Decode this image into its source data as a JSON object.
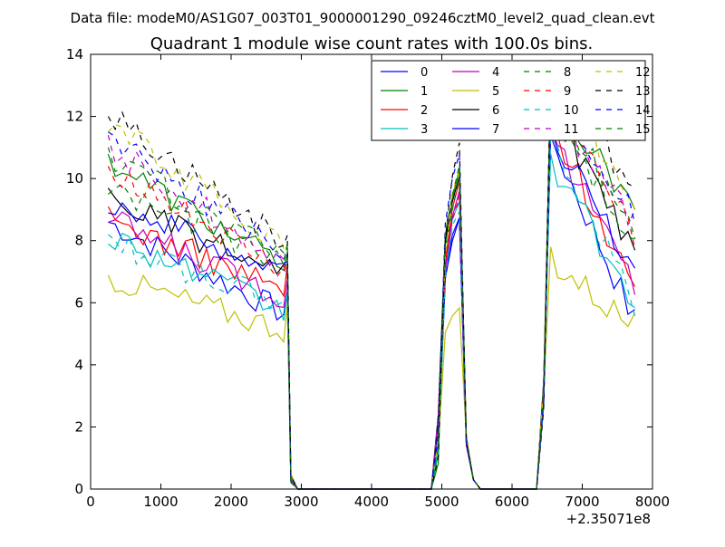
{
  "chart_data": {
    "type": "line",
    "suptitle": "Data file: modeM0/AS1G07_003T01_9000001290_09246cztM0_level2_quad_clean.evt",
    "title": "Quadrant 1 module wise count rates with 100.0s bins.",
    "xlabel": "",
    "ylabel": "",
    "xlim": [
      0,
      8000
    ],
    "ylim": [
      0,
      14
    ],
    "x_offset_label": "+2.35071e8",
    "xticks": [
      0,
      1000,
      2000,
      3000,
      4000,
      5000,
      6000,
      7000,
      8000
    ],
    "yticks": [
      0,
      2,
      4,
      6,
      8,
      10,
      12,
      14
    ],
    "grid": false,
    "legend_position": "top-right",
    "legend_columns": 4,
    "x": [
      250,
      350,
      450,
      550,
      650,
      750,
      850,
      950,
      1050,
      1150,
      1250,
      1350,
      1450,
      1550,
      1650,
      1750,
      1850,
      1950,
      2050,
      2150,
      2250,
      2350,
      2450,
      2550,
      2650,
      2750,
      2800,
      2850,
      2950,
      3050,
      4850,
      4950,
      5050,
      5150,
      5250,
      5350,
      5450,
      5550,
      6350,
      6450,
      6550,
      6650,
      6750,
      6850,
      6950,
      7050,
      7150,
      7250,
      7350,
      7450,
      7550,
      7650,
      7750
    ],
    "series": [
      {
        "name": "0",
        "color": "#0000ff",
        "dash": "solid",
        "start": 8.6,
        "end": 5.4,
        "peak1": 8.8,
        "peak2": 11.4,
        "dip": 4.5
      },
      {
        "name": "1",
        "color": "#008000",
        "dash": "solid",
        "start": 10.6,
        "end": 8.8,
        "peak1": 10.4,
        "peak2": 13.2,
        "dip": 5.8
      },
      {
        "name": "2",
        "color": "#ff0000",
        "dash": "solid",
        "start": 8.7,
        "end": 6.5,
        "peak1": 9.8,
        "peak2": 12.0,
        "dip": 5.5
      },
      {
        "name": "3",
        "color": "#00bfbf",
        "dash": "solid",
        "start": 8.2,
        "end": 6.0,
        "peak1": 9.2,
        "peak2": 10.8,
        "dip": 4.7
      },
      {
        "name": "4",
        "color": "#bf00bf",
        "dash": "solid",
        "start": 8.7,
        "end": 6.6,
        "peak1": 9.6,
        "peak2": 11.6,
        "dip": 5.2
      },
      {
        "name": "5",
        "color": "#bfbf00",
        "dash": "solid",
        "start": 6.8,
        "end": 5.2,
        "peak1": 5.9,
        "peak2": 7.8,
        "dip": 4.5
      },
      {
        "name": "6",
        "color": "#000000",
        "dash": "solid",
        "start": 9.4,
        "end": 7.4,
        "peak1": 10.2,
        "peak2": 12.6,
        "dip": 5.8
      },
      {
        "name": "7",
        "color": "#0000ff",
        "dash": "solid",
        "start": 9.3,
        "end": 7.0,
        "peak1": 8.6,
        "peak2": 11.8,
        "dip": 6.0
      },
      {
        "name": "8",
        "color": "#008000",
        "dash": "dashed",
        "start": 9.7,
        "end": 8.1,
        "peak1": 10.0,
        "peak2": 12.2,
        "dip": 6.4
      },
      {
        "name": "9",
        "color": "#ff0000",
        "dash": "dashed",
        "start": 10.4,
        "end": 8.0,
        "peak1": 9.4,
        "peak2": 13.0,
        "dip": 5.6
      },
      {
        "name": "10",
        "color": "#00bfbf",
        "dash": "dashed",
        "start": 8.0,
        "end": 6.0,
        "peak1": 9.0,
        "peak2": 11.4,
        "dip": 5.1
      },
      {
        "name": "11",
        "color": "#bf00bf",
        "dash": "dashed",
        "start": 11.0,
        "end": 8.6,
        "peak1": 9.6,
        "peak2": 12.7,
        "dip": 5.9
      },
      {
        "name": "12",
        "color": "#bfbf00",
        "dash": "dashed",
        "start": 11.8,
        "end": 8.8,
        "peak1": 10.2,
        "peak2": 13.8,
        "dip": 6.2
      },
      {
        "name": "13",
        "color": "#000000",
        "dash": "dashed",
        "start": 12.1,
        "end": 9.7,
        "peak1": 11.1,
        "peak2": 13.5,
        "dip": 6.3
      },
      {
        "name": "14",
        "color": "#0000ff",
        "dash": "dashed",
        "start": 11.4,
        "end": 8.7,
        "peak1": 10.8,
        "peak2": 13.0,
        "dip": 6.0
      },
      {
        "name": "15",
        "color": "#008000",
        "dash": "dashed",
        "start": 10.7,
        "end": 8.4,
        "peak1": 10.5,
        "peak2": 12.9,
        "dip": 6.2
      }
    ]
  }
}
